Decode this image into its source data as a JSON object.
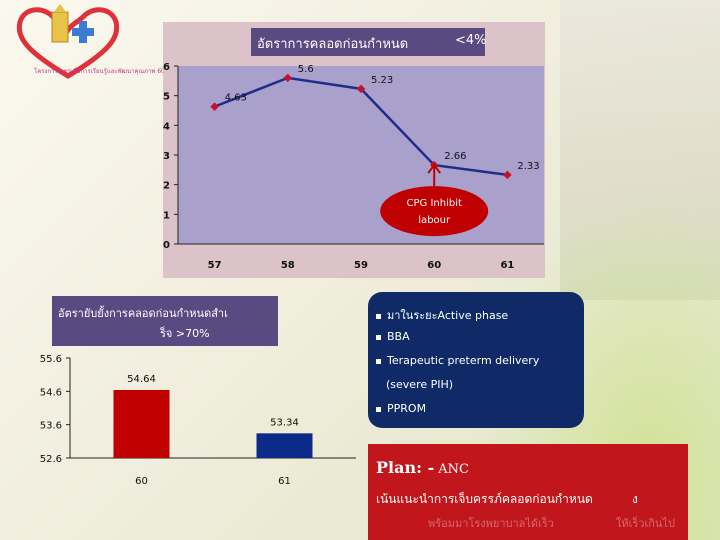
{
  "logo": {
    "caption": "โครงการเพชรเพื่อการเรียนรู้และพัฒนาคุณภาพ 60"
  },
  "chart1": {
    "title": "อัตราการคลอดก่อนกำหนด",
    "target": "<4%",
    "annotation": {
      "line1": "CPG Inhibit",
      "line2": "labour"
    }
  },
  "chart2": {
    "title_line1": "อัตรายับยั้งการคลอดก่อนกำหนดสำเ",
    "title_line2": "ร็จ  >70%"
  },
  "bullets": {
    "items": [
      "มาในระยะActive phase",
      "BBA",
      "Terapeutic preterm delivery",
      "(severe PIH)",
      "PPROM"
    ]
  },
  "plan": {
    "label": "Plan: -",
    "anc": "ANC",
    "line2": "เน้นแนะนำการเจ็บครรภ์คลอดก่อนกำหนด",
    "suffix": "ง",
    "ghost_left": "พร้อมมาโรงพยาบาลได้เร็ว",
    "ghost_right": "ให้เร็วเกินไป"
  },
  "colors": {
    "line": "#1f2d8a",
    "marker": "#c8102e",
    "bar_60": "#c00000",
    "bar_61": "#0b2a8a"
  },
  "chart_data": [
    {
      "type": "line",
      "title": "อัตราการคลอดก่อนกำหนด <4%",
      "categories": [
        "57",
        "58",
        "59",
        "60",
        "61"
      ],
      "values": [
        4.63,
        5.6,
        5.23,
        2.66,
        2.33
      ],
      "ylim": [
        0,
        6
      ],
      "yticks": [
        0,
        1,
        2,
        3,
        4,
        5,
        6
      ],
      "grid": false
    },
    {
      "type": "bar",
      "title": "อัตรายับยั้งการคลอดก่อนกำหนดสำเร็จ >70%",
      "categories": [
        "60",
        "61"
      ],
      "values": [
        54.64,
        53.34
      ],
      "ylim": [
        52.6,
        55.6
      ],
      "yticks": [
        "52.6",
        "53.6",
        "54.6",
        "55.6"
      ],
      "grid": false
    }
  ]
}
